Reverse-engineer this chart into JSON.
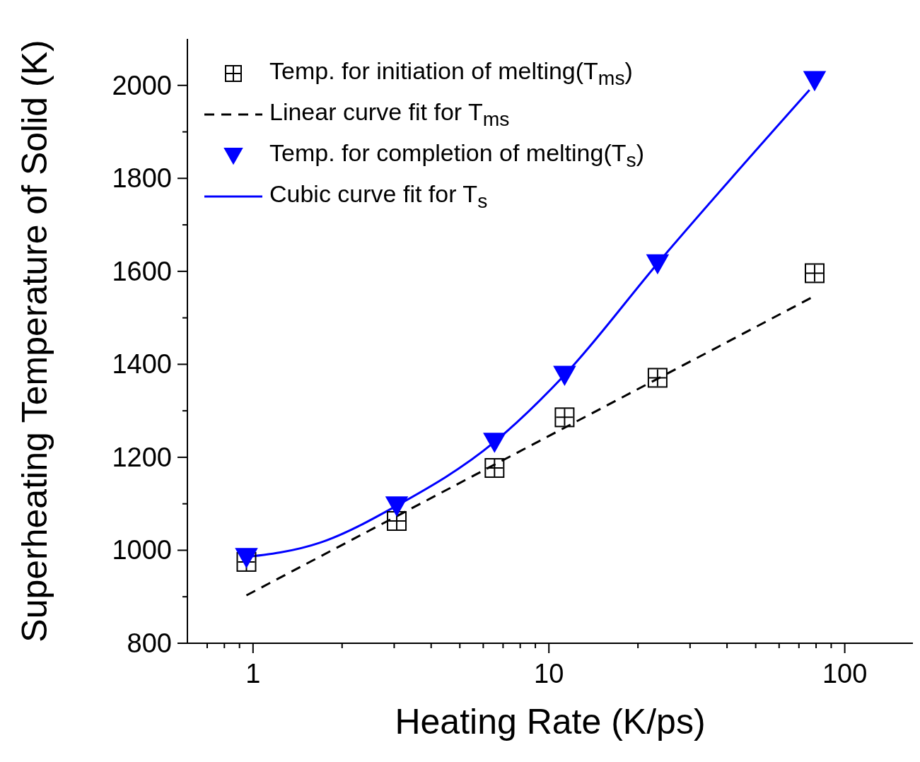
{
  "chart_data": {
    "type": "scatter",
    "xlabel": "Heating Rate (K/ps)",
    "ylabel": "Superheating Temperature of Solid (K)",
    "log": "x",
    "xlim": [
      0.6,
      170
    ],
    "xticks": [
      {
        "value": 0.7,
        "label": null
      },
      {
        "value": 0.8,
        "label": null
      },
      {
        "value": 0.9,
        "label": null
      },
      1,
      {
        "value": 2,
        "label": null
      },
      {
        "value": 3,
        "label": null
      },
      {
        "value": 4,
        "label": null
      },
      {
        "value": 5,
        "label": null
      },
      {
        "value": 6,
        "label": null
      },
      {
        "value": 7,
        "label": null
      },
      {
        "value": 8,
        "label": null
      },
      {
        "value": 9,
        "label": null
      },
      10,
      {
        "value": 20,
        "label": null
      },
      {
        "value": 30,
        "label": null
      },
      {
        "value": 40,
        "label": null
      },
      {
        "value": 50,
        "label": null
      },
      {
        "value": 60,
        "label": null
      },
      {
        "value": 70,
        "label": null
      },
      {
        "value": 80,
        "label": null
      },
      {
        "value": 90,
        "label": null
      },
      100
    ],
    "ylim": [
      800,
      2100
    ],
    "yticks": [
      800,
      {
        "value": 900,
        "label": null
      },
      1000,
      {
        "value": 1100,
        "label": null
      },
      1200,
      {
        "value": 1300,
        "label": null
      },
      1400,
      {
        "value": 1500,
        "label": null
      },
      1600,
      {
        "value": 1700,
        "label": null
      },
      1800,
      {
        "value": 1900,
        "label": null
      },
      2000
    ],
    "grid": false,
    "legend": "top left",
    "series": [
      {
        "name": "Temp. for initiation of melting(T$_{ms}$)",
        "marker": "square",
        "color": "#000000",
        "x": [
          0.95,
          3.06,
          6.55,
          11.3,
          23.3,
          79.1
        ],
        "values": [
          975,
          1063,
          1177,
          1286,
          1371,
          1596
        ]
      },
      {
        "name": "Linear curve fit for T$_{ms}$",
        "type": "line",
        "marker": "none",
        "line_style": "dashed",
        "color": "#000000",
        "x": [
          0.95,
          79.1
        ],
        "values": [
          903,
          1547
        ]
      },
      {
        "name": "Temp. for completion of melting(T$_{s}$)",
        "marker": "triangle",
        "color": "#0000ff",
        "x": [
          0.95,
          3.06,
          6.55,
          11.3,
          23.3,
          79.1
        ],
        "values": [
          985,
          1096,
          1233,
          1377,
          1617,
          2011
        ]
      },
      {
        "name": "Cubic curve fit for T$_{s}$",
        "type": "line",
        "marker": "none",
        "line_style": "solid",
        "color": "#0000ff",
        "x": [
          0.91,
          1.68,
          3.06,
          6.55,
          11.3,
          23.3,
          76
        ],
        "values": [
          984,
          1016,
          1096,
          1233,
          1377,
          1617,
          1990
        ]
      }
    ]
  }
}
